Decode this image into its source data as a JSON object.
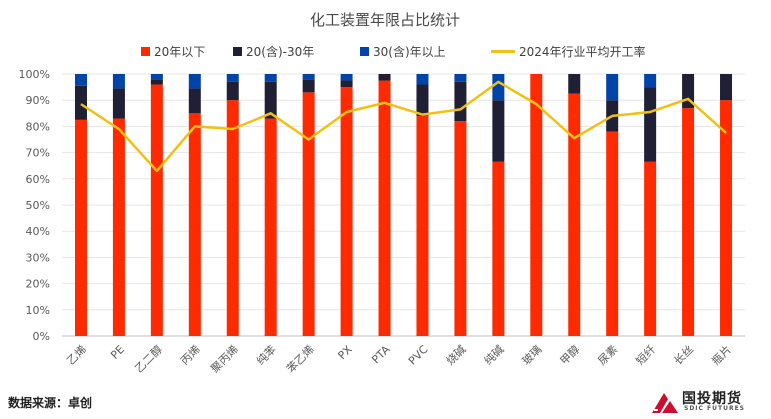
{
  "chart_data": {
    "type": "bar",
    "title": "化工装置年限占比统计",
    "categories": [
      "乙烯",
      "PE",
      "乙二醇",
      "丙烯",
      "聚丙烯",
      "纯苯",
      "苯乙烯",
      "PX",
      "PTA",
      "PVC",
      "烧碱",
      "纯碱",
      "玻璃",
      "甲醇",
      "尿素",
      "短纤",
      "长丝",
      "瓶片"
    ],
    "series": [
      {
        "name": "20年以下",
        "color": "#ff2a00",
        "values": [
          82.5,
          83,
          96,
          85,
          90,
          83,
          93,
          95,
          97.5,
          84,
          82,
          66.5,
          100,
          92.5,
          78,
          66.5,
          87,
          90
        ]
      },
      {
        "name": "20(含)-30年",
        "color": "#1f1f36",
        "values": [
          13,
          11.5,
          2,
          9.5,
          7,
          14,
          5,
          2.5,
          2.5,
          12,
          15,
          23.5,
          0,
          7.5,
          12,
          28.5,
          13,
          10
        ]
      },
      {
        "name": "30(含)年以上",
        "color": "#0044aa",
        "values": [
          4.5,
          5.5,
          2,
          5.5,
          3,
          3,
          2,
          2.5,
          0,
          4,
          3,
          10,
          0,
          0,
          10,
          5,
          0,
          0
        ]
      }
    ],
    "line": {
      "name": "2024年行业平均开工率",
      "color": "#f2c014",
      "values": [
        88.5,
        79,
        63,
        80,
        79,
        85,
        75,
        85.5,
        89,
        84.5,
        86.5,
        97,
        88.5,
        75.5,
        84,
        85.5,
        90.5,
        77.5
      ]
    },
    "yticks": [
      "0%",
      "10%",
      "20%",
      "30%",
      "40%",
      "50%",
      "60%",
      "70%",
      "80%",
      "90%",
      "100%"
    ],
    "ylim": [
      0,
      100
    ],
    "legend_position": "top"
  },
  "source": "数据来源：卓创",
  "logo": {
    "cn": "国投期货",
    "en": "SDIC FUTURES",
    "color": "#c8102e"
  }
}
